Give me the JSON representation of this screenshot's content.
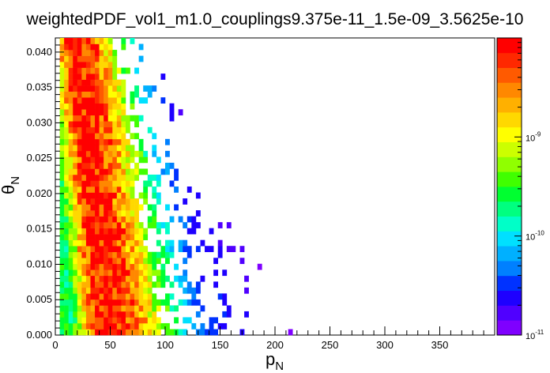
{
  "chart_data": {
    "type": "heatmap",
    "title": "weightedPDF_vol1_m1.0_couplings9.375e-11_1.5e-09_3.5625e-10",
    "xlabel": "p",
    "xlabel_sub": "N",
    "ylabel": "θ",
    "ylabel_sub": "N",
    "xlim": [
      0,
      400
    ],
    "ylim": [
      0,
      0.042
    ],
    "x_ticks": [
      0,
      50,
      100,
      150,
      200,
      250,
      300,
      350
    ],
    "x_tick_labels": [
      "0",
      "50",
      "100",
      "150",
      "200",
      "250",
      "300",
      "350"
    ],
    "y_ticks": [
      0,
      0.005,
      0.01,
      0.015,
      0.02,
      0.025,
      0.03,
      0.035,
      0.04
    ],
    "y_tick_labels": [
      "0.000",
      "0.005",
      "0.010",
      "0.015",
      "0.020",
      "0.025",
      "0.030",
      "0.035",
      "0.040"
    ],
    "z_scale": "log",
    "zlim": [
      1e-11,
      1e-08
    ],
    "colorbar_labels": [
      {
        "base": "10",
        "exp": "-11",
        "value": 1e-11
      },
      {
        "base": "10",
        "exp": "-10",
        "value": 1e-10
      },
      {
        "base": "10",
        "exp": "-9",
        "value": 1e-09
      }
    ],
    "bins": {
      "nx": 100,
      "ny": 50
    },
    "density_model": {
      "description_of_shape": "peak near p≈15-25 at high θ, peak p≈45 at low θ; ridge spreads to ~150-250 in p with sparse tail",
      "palette": [
        "#7f00ff",
        "#5000ff",
        "#1e00ff",
        "#0032ff",
        "#0080ff",
        "#00b0ff",
        "#00e0ff",
        "#00ffc8",
        "#00ff80",
        "#00ff30",
        "#40ff00",
        "#90ff00",
        "#ccff00",
        "#ffff00",
        "#ffd800",
        "#ffb000",
        "#ff8800",
        "#ff5a00",
        "#ff2800",
        "#ff0000"
      ]
    }
  }
}
